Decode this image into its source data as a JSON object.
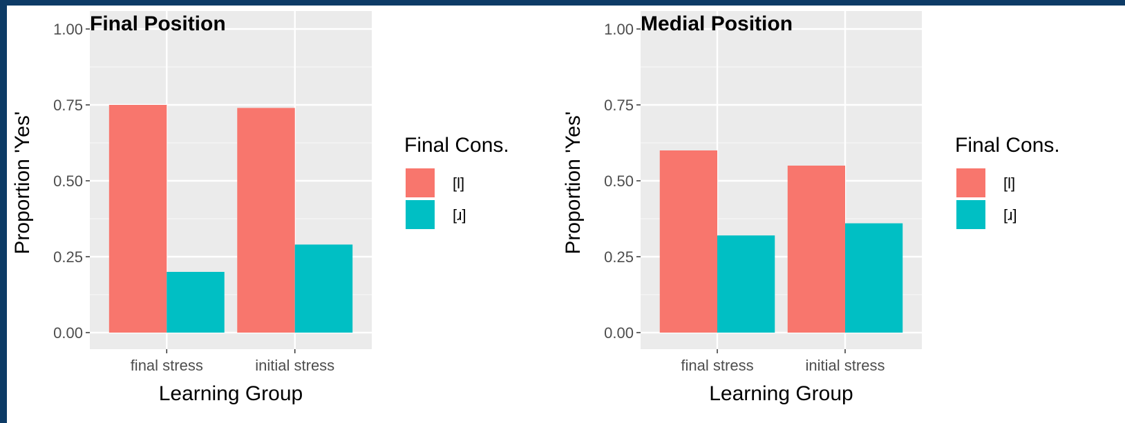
{
  "chart_data": [
    {
      "type": "bar",
      "title": "Final Position",
      "xlabel": "Learning Group",
      "ylabel": "Proportion 'Yes'",
      "categories": [
        "final stress",
        "initial stress"
      ],
      "ylim": [
        0,
        1
      ],
      "yticks": [
        "0.00",
        "0.25",
        "0.50",
        "0.75",
        "1.00"
      ],
      "grid": true,
      "legend_title": "Final Cons.",
      "legend_position": "right",
      "series": [
        {
          "name": "[l]",
          "color": "#F8766D",
          "values": [
            0.75,
            0.74
          ]
        },
        {
          "name": "[ɹ]",
          "color": "#00BFC4",
          "values": [
            0.2,
            0.29
          ]
        }
      ]
    },
    {
      "type": "bar",
      "title": "Medial Position",
      "xlabel": "Learning Group",
      "ylabel": "Proportion 'Yes'",
      "categories": [
        "final stress",
        "initial stress"
      ],
      "ylim": [
        0,
        1
      ],
      "yticks": [
        "0.00",
        "0.25",
        "0.50",
        "0.75",
        "1.00"
      ],
      "grid": true,
      "legend_title": "Final Cons.",
      "legend_position": "right",
      "series": [
        {
          "name": "[l]",
          "color": "#F8766D",
          "values": [
            0.6,
            0.55
          ]
        },
        {
          "name": "[ɹ]",
          "color": "#00BFC4",
          "values": [
            0.32,
            0.36
          ]
        }
      ]
    }
  ]
}
